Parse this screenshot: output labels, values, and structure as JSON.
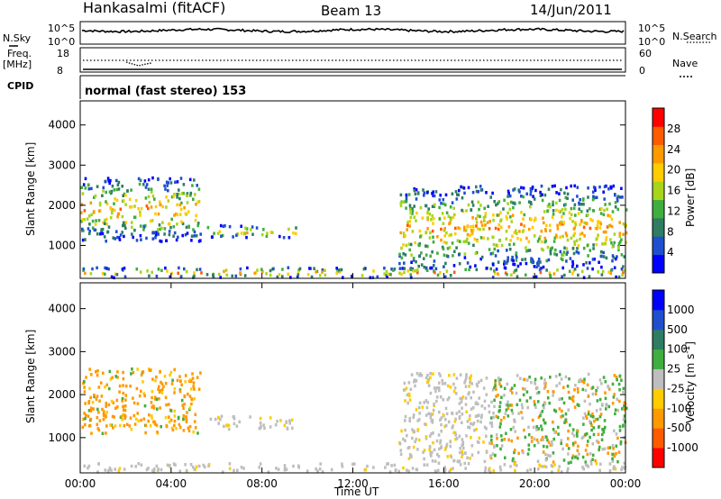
{
  "header": {
    "station": "Hankasalmi (fitACF)",
    "beam": "Beam 13",
    "date": "14/Jun/2011"
  },
  "summary": {
    "nsky_label": "N.Sky",
    "nsearch_label": "N.Search",
    "freq_label_1": "Freq.",
    "freq_label_2": "[MHz]",
    "nave_label": "Nave",
    "cpid_label": "CPID",
    "cpid_value": "normal (fast stereo) 153",
    "noise_ticks_left": [
      "10^5",
      "10^0"
    ],
    "noise_ticks_right": [
      "10^5",
      "10^0"
    ],
    "freq_ticks": [
      "18",
      "8"
    ],
    "nave_ticks": [
      "60",
      "0"
    ]
  },
  "colors": {
    "power": [
      "#0000ff",
      "#1f4fcf",
      "#2e7d62",
      "#3fae3f",
      "#a8d51c",
      "#ffcc00",
      "#ff9900",
      "#ff5a00",
      "#ff0000"
    ],
    "velocity": [
      "#ff0000",
      "#ff5a00",
      "#ff9900",
      "#ffcc00",
      "#bebebe",
      "#3fae3f",
      "#2e7d62",
      "#1f4fcf",
      "#0000ff"
    ]
  },
  "chart_data": [
    {
      "type": "heatmap",
      "title": "",
      "xlabel": "Time UT",
      "ylabel": "Slant Range [km]",
      "x_ticks": [
        "00:00",
        "04:00",
        "08:00",
        "12:00",
        "16:00",
        "20:00",
        "00:00"
      ],
      "y_ticks": [
        "1000",
        "2000",
        "3000",
        "4000"
      ],
      "ylim": [
        180,
        4600
      ],
      "colorbar_label": "Power [dB]",
      "colorbar_ticks": [
        "4",
        "8",
        "12",
        "16",
        "20",
        "24",
        "28"
      ],
      "bands": [
        {
          "t0": 0.0,
          "t1": 5.3,
          "r0": 1100,
          "r1": 2700
        },
        {
          "t0": 5.5,
          "t1": 9.5,
          "r0": 1200,
          "r1": 1500
        },
        {
          "t0": 14.0,
          "t1": 24.0,
          "r0": 400,
          "r1": 2500
        },
        {
          "t0": 0.0,
          "t1": 24.0,
          "r0": 200,
          "r1": 450
        }
      ]
    },
    {
      "type": "heatmap",
      "title": "",
      "xlabel": "Time UT",
      "ylabel": "Slant Range [km]",
      "x_ticks": [
        "00:00",
        "04:00",
        "08:00",
        "12:00",
        "16:00",
        "20:00",
        "00:00"
      ],
      "y_ticks": [
        "1000",
        "2000",
        "3000",
        "4000"
      ],
      "ylim": [
        180,
        4600
      ],
      "colorbar_label": "Velocity [m s^-1]",
      "colorbar_ticks": [
        "-1000",
        "-500",
        "-100",
        "-25",
        "25",
        "100",
        "500",
        "1000"
      ],
      "bands": [
        {
          "t0": 0.0,
          "t1": 5.3,
          "r0": 1100,
          "r1": 2600
        },
        {
          "t0": 5.5,
          "t1": 9.5,
          "r0": 1200,
          "r1": 1500
        },
        {
          "t0": 14.0,
          "t1": 24.0,
          "r0": 400,
          "r1": 2500
        },
        {
          "t0": 0.0,
          "t1": 24.0,
          "r0": 200,
          "r1": 400
        }
      ]
    }
  ]
}
